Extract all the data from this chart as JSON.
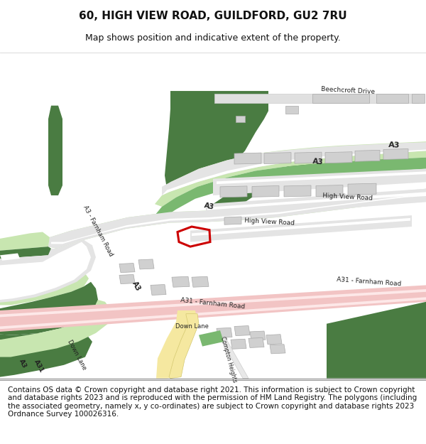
{
  "title": "60, HIGH VIEW ROAD, GUILDFORD, GU2 7RU",
  "subtitle": "Map shows position and indicative extent of the property.",
  "footer": "Contains OS data © Crown copyright and database right 2021. This information is subject to Crown copyright and database rights 2023 and is reproduced with the permission of HM Land Registry. The polygons (including the associated geometry, namely x, y co-ordinates) are subject to Crown copyright and database rights 2023 Ordnance Survey 100026316.",
  "bg_color": "#ffffff",
  "map_bg": "#f8f8f4",
  "green_dark": "#4a7c42",
  "green_light": "#c8e6b0",
  "green_mid": "#7ab870",
  "road_pink": "#f2c4c4",
  "road_white": "#ffffff",
  "road_gray": "#e4e4e4",
  "building_gray": "#d0d0d0",
  "property_red": "#cc0000",
  "road_yellow": "#f5e8a0",
  "title_fontsize": 11,
  "subtitle_fontsize": 9,
  "footer_fontsize": 7.5,
  "border_color": "#aaaaaa"
}
